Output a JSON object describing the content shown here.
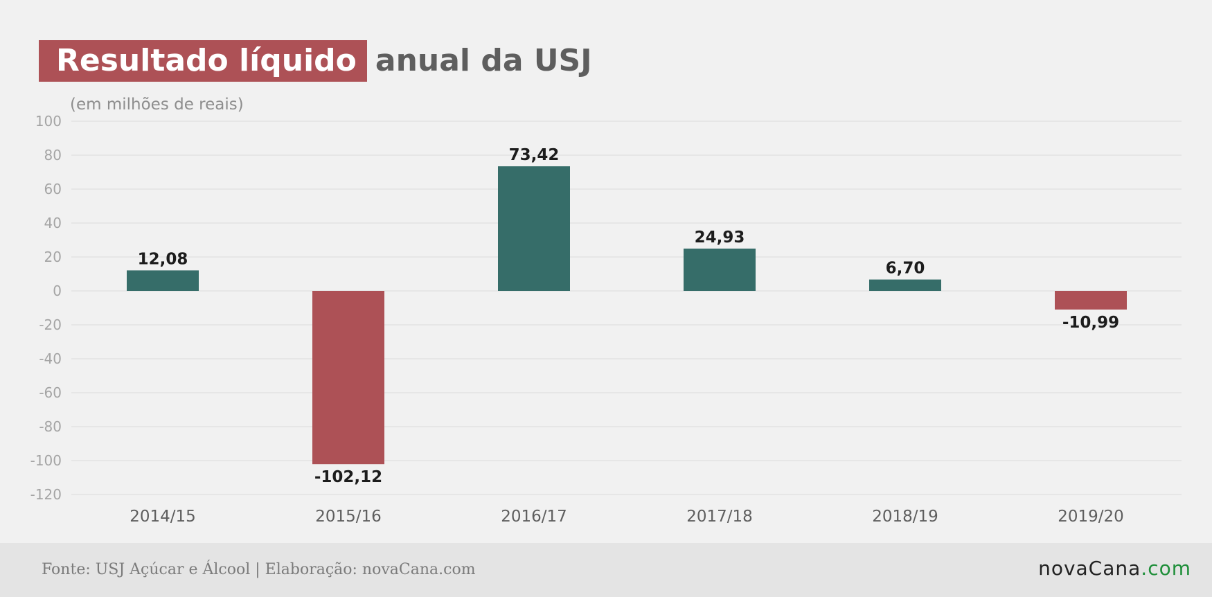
{
  "title": {
    "highlight": "Resultado líquido",
    "rest": "anual da USJ"
  },
  "footer": {
    "source": "Fonte: USJ Açúcar e Álcool | Elaboração: novaCana.com",
    "brand_main": "novaCana",
    "brand_tld": ".com"
  },
  "chart_data": {
    "type": "bar",
    "subtitle": "(em milhões de reais)",
    "categories": [
      "2014/15",
      "2015/16",
      "2016/17",
      "2017/18",
      "2018/19",
      "2019/20"
    ],
    "values": [
      12.08,
      -102.12,
      73.42,
      24.93,
      6.7,
      -10.99
    ],
    "data_labels": [
      "12,08",
      "-102,12",
      "73,42",
      "24,93",
      "6,70",
      "-10,99"
    ],
    "yticks": [
      100,
      80,
      60,
      40,
      20,
      0,
      -20,
      -40,
      -60,
      -80,
      -100,
      -120
    ],
    "ylim": [
      -120,
      100
    ],
    "grid": true,
    "colors": {
      "positive": "#366d69",
      "negative": "#ad5156"
    }
  }
}
